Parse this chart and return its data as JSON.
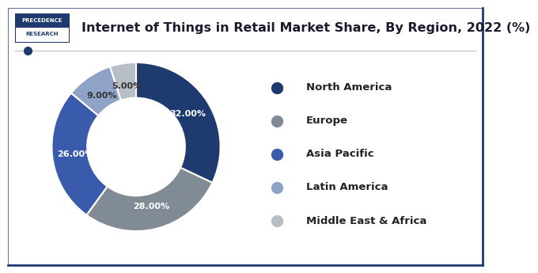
{
  "title": "Internet of Things in Retail Market Share, By Region, 2022 (%)",
  "labels": [
    "North America",
    "Europe",
    "Asia Pacific",
    "Latin America",
    "Middle East & Africa"
  ],
  "values": [
    32,
    28,
    26,
    9,
    5
  ],
  "colors": [
    "#1e3a6e",
    "#808b96",
    "#3a5aab",
    "#8fa3c8",
    "#b8bec6"
  ],
  "pct_labels": [
    "32.00%",
    "28.00%",
    "26.00%",
    "9.00%",
    "5.00%"
  ],
  "legend_colors": [
    "#1e3a6e",
    "#808b96",
    "#3a5aab",
    "#8fa3c8",
    "#b8bec6"
  ],
  "background_color": "#ffffff",
  "border_color": "#1e3a6e",
  "title_fontsize": 11.5,
  "logo_text1": "PRECEDENCE",
  "logo_text2": "RESEARCH",
  "logo_bg": "#1e3a6e",
  "line_color": "#c8c8c8",
  "dot_color": "#1e3a6e"
}
